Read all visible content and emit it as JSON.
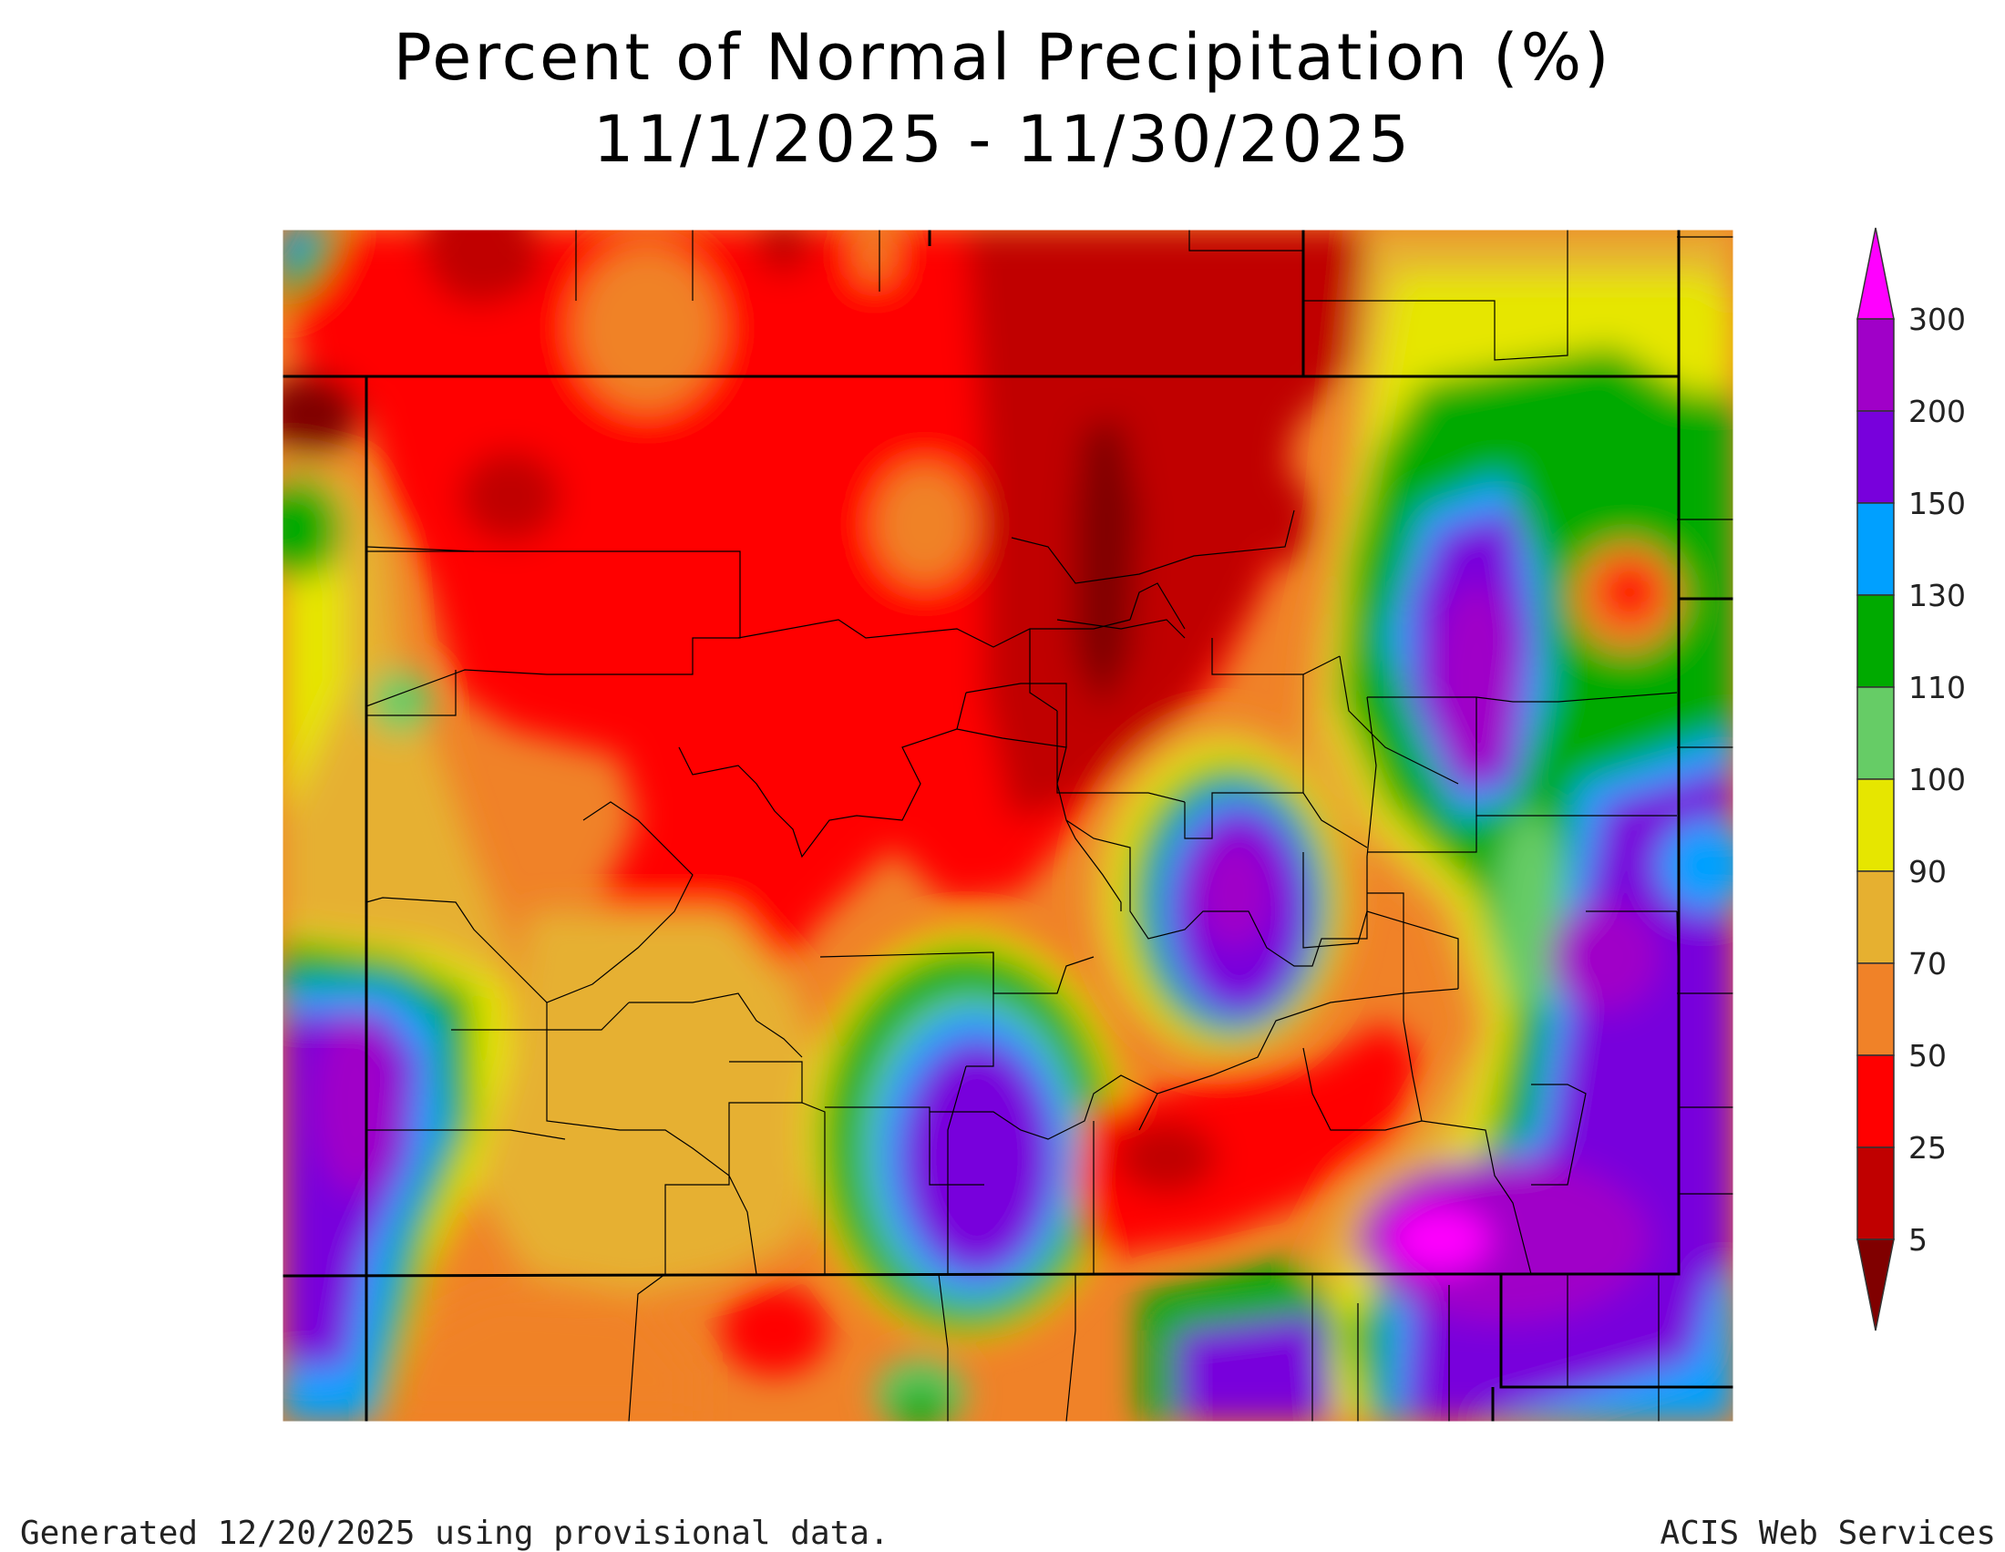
{
  "title": {
    "line1": "Percent of Normal Precipitation (%)",
    "line2": "11/1/2025 - 11/30/2025"
  },
  "legend": {
    "ticks": [
      "300",
      "200",
      "150",
      "130",
      "110",
      "100",
      "90",
      "70",
      "50",
      "25",
      "5"
    ],
    "colors": {
      "above_300": "#ff00ff",
      "200_300": "#a000c8",
      "150_200": "#7800dc",
      "130_150": "#00a0ff",
      "110_130": "#00aa00",
      "100_110": "#66cc66",
      "90_100": "#e6e600",
      "70_90": "#e6b030",
      "50_70": "#f08228",
      "25_50": "#ff0000",
      "5_25": "#c00000",
      "below_5": "#800000"
    }
  },
  "footer": {
    "left": "Generated 12/20/2025 using provisional data.",
    "right": "ACIS Web Services"
  }
}
